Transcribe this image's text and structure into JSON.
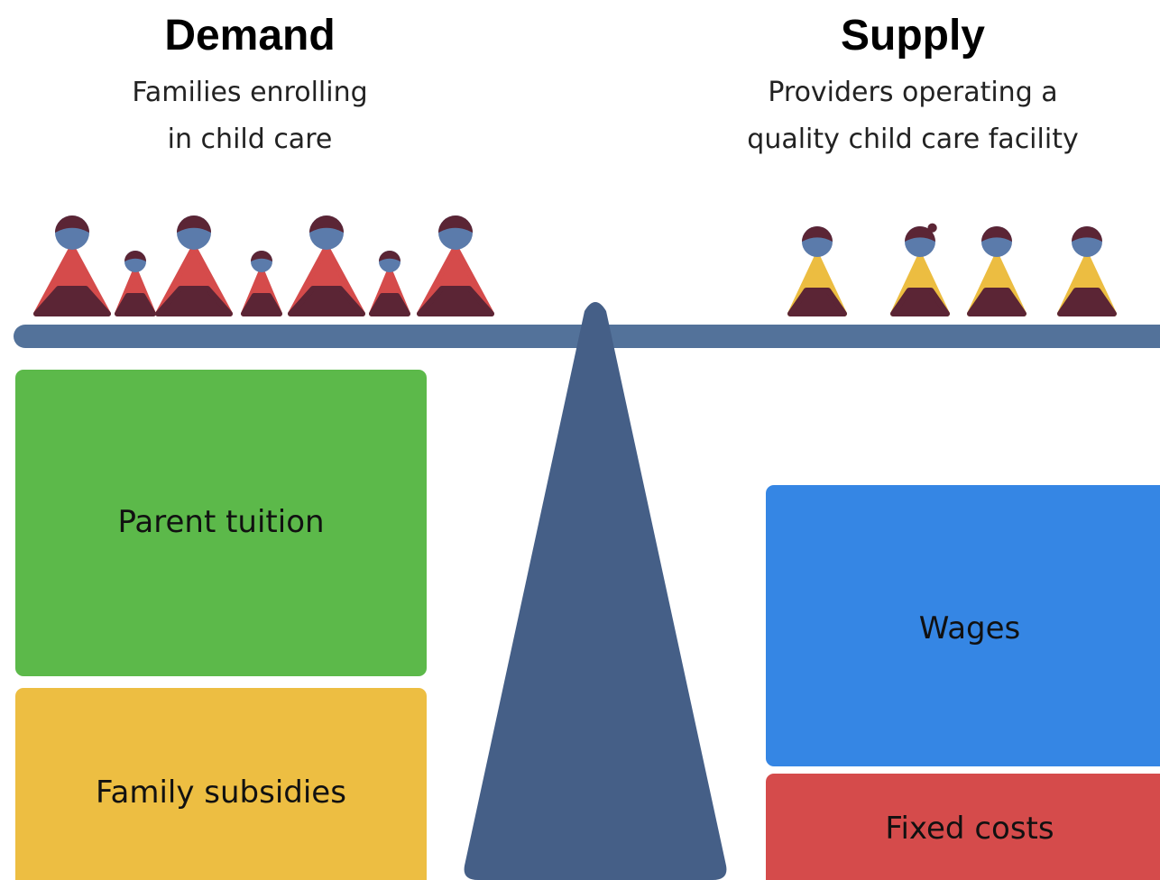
{
  "demand": {
    "title": "Demand",
    "subtitle": [
      "Families enrolling",
      "in child care"
    ]
  },
  "supply": {
    "title": "Supply",
    "subtitle": [
      "Providers operating a",
      "quality child care facility"
    ]
  },
  "demand_boxes": [
    "Parent tuition",
    "Family subsidies"
  ],
  "supply_boxes": [
    "Wages",
    "Fixed costs"
  ]
}
